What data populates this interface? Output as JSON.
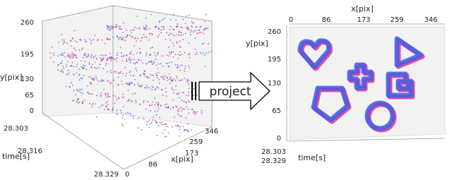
{
  "left_plot": {
    "y_label": "y[pix]",
    "y_ticks": [
      "260",
      "195",
      "130",
      "65",
      "0"
    ],
    "time_label": "time[s]",
    "time_ticks": [
      "28.303",
      "28.316",
      "28.329"
    ],
    "x_label": "x[pix]",
    "x_ticks": [
      "0",
      "86",
      "173",
      "259",
      "346"
    ]
  },
  "arrow_label": "project",
  "right_plot": {
    "x_label": "x[pix]",
    "x_ticks": [
      "0",
      "86",
      "173",
      "259",
      "346"
    ],
    "y_label": "y[pix]",
    "y_ticks": [
      "260",
      "195",
      "130",
      "65",
      "0"
    ],
    "time_label": "time[s]",
    "time_ticks": [
      "28.303",
      "28.329"
    ]
  }
}
